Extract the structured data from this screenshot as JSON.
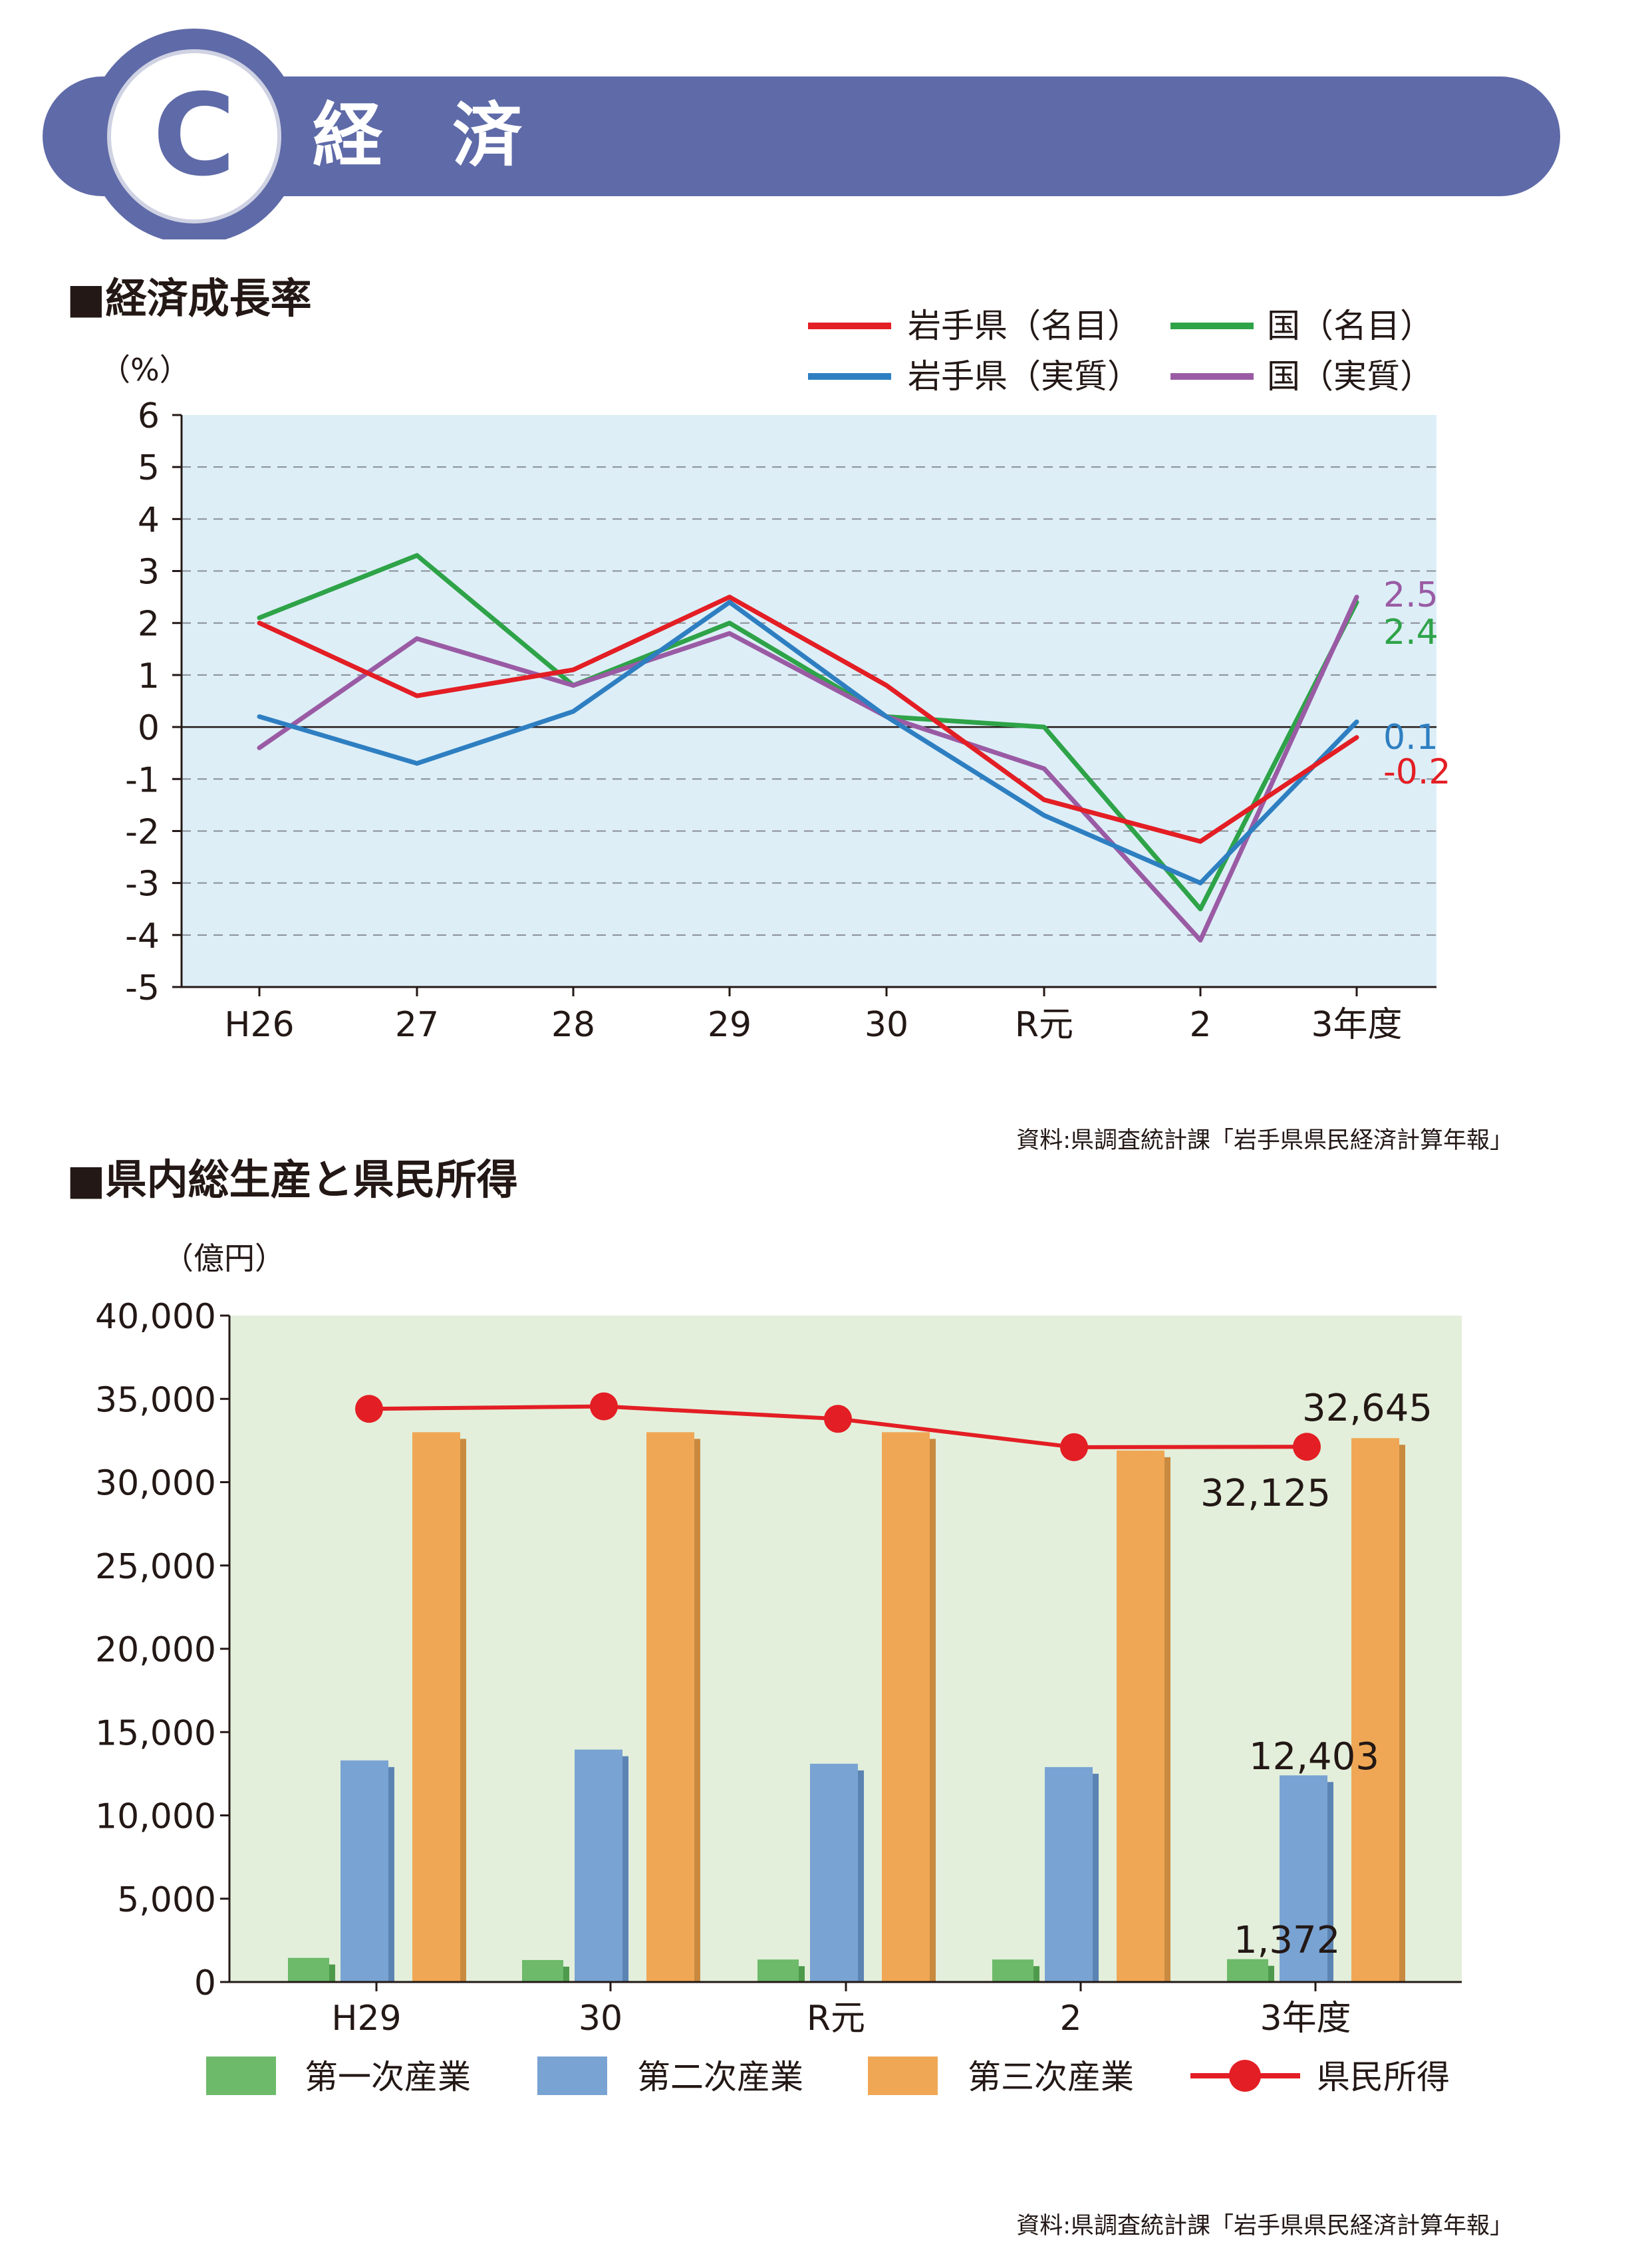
{
  "header": {
    "badge_letter": "C",
    "title": "経　済",
    "band_color": "#5f6aa8"
  },
  "chart_data": [
    {
      "type": "line",
      "title": "■経済成長率",
      "ylabel": "（%）",
      "xlabel": "",
      "ylim": [
        -5,
        6
      ],
      "yticks": [
        "6",
        "5",
        "4",
        "3",
        "2",
        "1",
        "0",
        "-1",
        "-2",
        "-3",
        "-4",
        "-5"
      ],
      "grid": true,
      "legend_position": "top-right",
      "categories": [
        "H26",
        "27",
        "28",
        "29",
        "30",
        "R元",
        "2",
        "3年度"
      ],
      "series": [
        {
          "name": "岩手県（名目）",
          "color": "#e31e24",
          "values": [
            2.0,
            0.6,
            1.1,
            2.5,
            0.8,
            -1.4,
            -2.2,
            -0.2
          ]
        },
        {
          "name": "国（名目）",
          "color": "#2ea348",
          "values": [
            2.1,
            3.3,
            0.8,
            2.0,
            0.2,
            0.0,
            -3.5,
            2.4
          ]
        },
        {
          "name": "岩手県（実質）",
          "color": "#2e7fc1",
          "values": [
            0.2,
            -0.7,
            0.3,
            2.4,
            0.2,
            -1.7,
            -3.0,
            0.1
          ]
        },
        {
          "name": "国（実質）",
          "color": "#9a5ba4",
          "values": [
            -0.4,
            1.7,
            0.8,
            1.8,
            0.2,
            -0.8,
            -4.1,
            2.5
          ]
        }
      ],
      "end_labels": [
        "-0.2",
        "2.4",
        "0.1",
        "2.5"
      ],
      "source": "資料:県調査統計課「岩手県県民経済計算年報」"
    },
    {
      "type": "bar",
      "title": "■県内総生産と県民所得",
      "ylabel": "（億円）",
      "xlabel": "",
      "ylim": [
        0,
        40000
      ],
      "yticks": [
        "40,000",
        "35,000",
        "30,000",
        "25,000",
        "20,000",
        "15,000",
        "10,000",
        "5,000",
        "0"
      ],
      "grid": false,
      "legend_position": "bottom",
      "categories": [
        "H29",
        "30",
        "R元",
        "2",
        "3年度"
      ],
      "series": [
        {
          "name": "第一次産業",
          "color": "#6cba6a",
          "values": [
            1450,
            1320,
            1350,
            1350,
            1372
          ]
        },
        {
          "name": "第二次産業",
          "color": "#79a3d2",
          "values": [
            13300,
            13950,
            13100,
            12900,
            12403
          ]
        },
        {
          "name": "第三次産業",
          "color": "#f0a755",
          "values": [
            33000,
            33000,
            33000,
            31900,
            32645
          ]
        }
      ],
      "line_series": {
        "name": "県民所得",
        "color": "#e31e24",
        "values": [
          34400,
          34550,
          33800,
          32100,
          32125
        ]
      },
      "annotations": [
        "1,372",
        "12,403",
        "32,645",
        "32,125"
      ],
      "source": "資料:県調査統計課「岩手県県民経済計算年報」"
    }
  ]
}
